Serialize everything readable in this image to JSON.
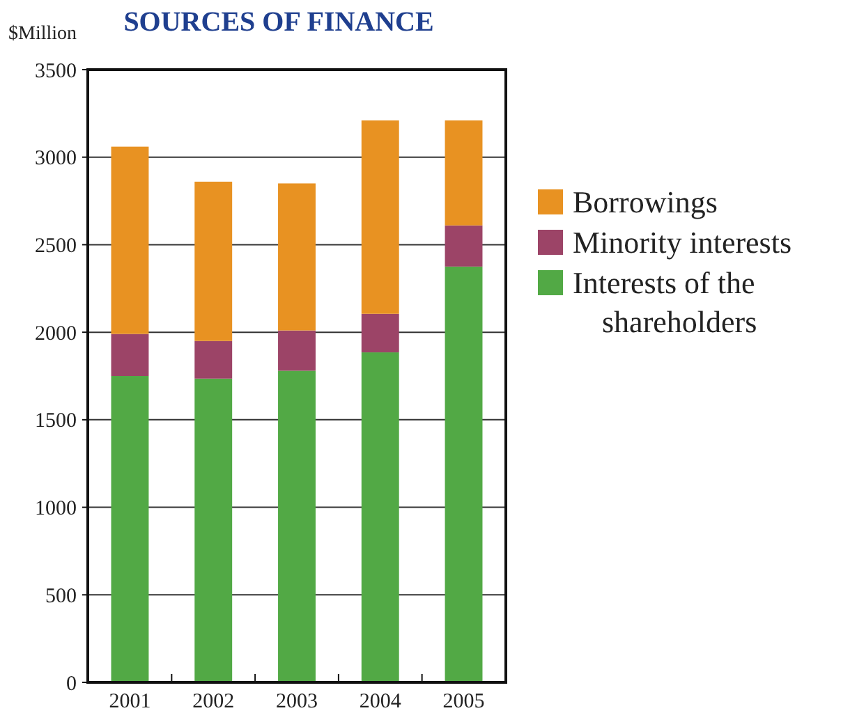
{
  "chart_data": {
    "type": "bar",
    "title": "SOURCES OF FINANCE",
    "ylabel": "$Million",
    "categories": [
      "2001",
      "2002",
      "2003",
      "2004",
      "2005"
    ],
    "stacked": true,
    "grid": "y",
    "legend": "right",
    "ylim": [
      0,
      3500
    ],
    "yticks": [
      0,
      500,
      1000,
      1500,
      2000,
      2500,
      3000,
      3500
    ],
    "series": [
      {
        "name": "Interests of the shareholders",
        "color": "#52a945",
        "values": [
          1750,
          1735,
          1780,
          1885,
          2375
        ]
      },
      {
        "name": "Minority interests",
        "color": "#9c4467",
        "values": [
          240,
          215,
          230,
          220,
          235
        ]
      },
      {
        "name": "Borrowings",
        "color": "#e89222",
        "values": [
          1070,
          910,
          840,
          1105,
          600
        ]
      }
    ]
  }
}
